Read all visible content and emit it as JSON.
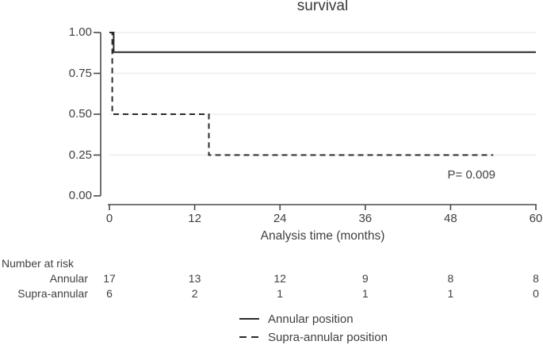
{
  "title": "survival",
  "p_value_label": "P= 0.009",
  "x_axis": {
    "label": "Analysis time (months)",
    "ticks": [
      0,
      12,
      24,
      36,
      48,
      60
    ]
  },
  "y_axis": {
    "ticks": [
      "0.00",
      "0.25",
      "0.50",
      "0.75",
      "1.00"
    ]
  },
  "colors": {
    "curve": "#2b2b2b",
    "axis": "#4a4a4a",
    "grid": "#ededed",
    "text": "#404040"
  },
  "chart_data": {
    "type": "line",
    "subtype": "kaplan-meier-step",
    "title": "survival",
    "xlabel": "Analysis time (months)",
    "ylabel": "",
    "xlim": [
      0,
      60
    ],
    "ylim": [
      0,
      1
    ],
    "grid": "horizontal",
    "x_ticks": [
      0,
      12,
      24,
      36,
      48,
      60
    ],
    "y_ticks": [
      0,
      0.25,
      0.5,
      0.75,
      1.0
    ],
    "legend_position": "bottom-center",
    "annotations": [
      {
        "text": "P= 0.009",
        "x": 50,
        "y": 0.13
      }
    ],
    "series": [
      {
        "name": "Annular position",
        "style": "solid",
        "points": [
          [
            0,
            1.0
          ],
          [
            0.6,
            1.0
          ],
          [
            0.6,
            0.88
          ],
          [
            60,
            0.88
          ]
        ]
      },
      {
        "name": "Supra-annular position",
        "style": "dashed",
        "points": [
          [
            0,
            1.0
          ],
          [
            0.4,
            1.0
          ],
          [
            0.4,
            0.5
          ],
          [
            14,
            0.5
          ],
          [
            14,
            0.25
          ],
          [
            54,
            0.25
          ]
        ]
      }
    ]
  },
  "risk_table": {
    "header": "Number at risk",
    "time_points": [
      0,
      12,
      24,
      36,
      48,
      60
    ],
    "rows": [
      {
        "label": "Annular",
        "values": [
          17,
          13,
          12,
          9,
          8,
          8
        ]
      },
      {
        "label": "Supra-annular",
        "values": [
          6,
          2,
          1,
          1,
          1,
          0
        ]
      }
    ]
  },
  "legend": {
    "items": [
      {
        "label": "Annular position",
        "style": "solid"
      },
      {
        "label": "Supra-annular position",
        "style": "dashed"
      }
    ]
  }
}
